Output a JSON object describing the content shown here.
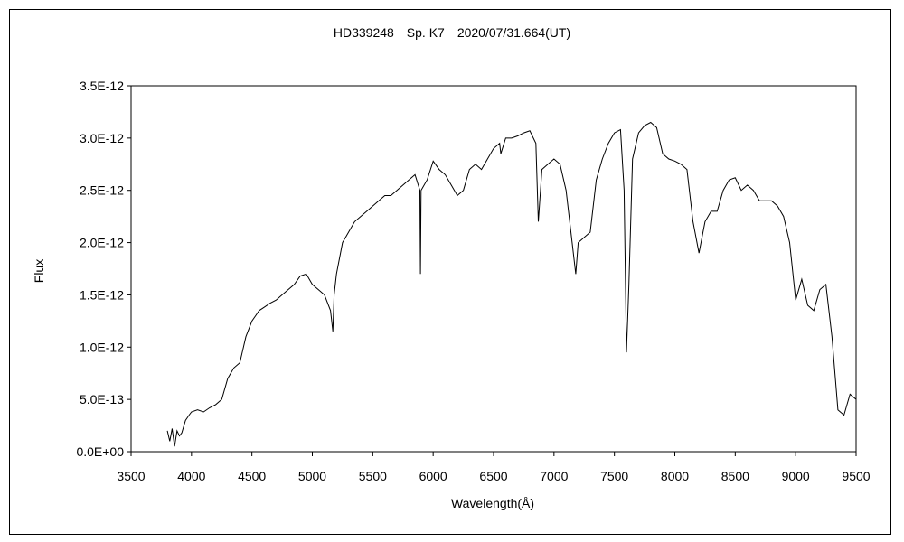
{
  "chart_data": {
    "type": "line",
    "title": "HD339248　Sp. K7　2020/07/31.664(UT)",
    "xlabel": "Wavelength(Å)",
    "ylabel": "Flux",
    "xlim": [
      3500,
      9500
    ],
    "ylim": [
      0,
      3.5e-12
    ],
    "x_ticks": [
      3500,
      4000,
      4500,
      5000,
      5500,
      6000,
      6500,
      7000,
      7500,
      8000,
      8500,
      9000,
      9500
    ],
    "x_tick_labels": [
      "3500",
      "4000",
      "4500",
      "5000",
      "5500",
      "6000",
      "6500",
      "7000",
      "7500",
      "8000",
      "8500",
      "9000",
      "9500"
    ],
    "y_ticks": [
      0,
      5e-13,
      1e-12,
      1.5e-12,
      2e-12,
      2.5e-12,
      3e-12,
      3.5e-12
    ],
    "y_tick_labels": [
      "0.0E+00",
      "5.0E-13",
      "1.0E-12",
      "1.5E-12",
      "2.0E-12",
      "2.5E-12",
      "3.0E-12",
      "3.5E-12"
    ],
    "grid": false,
    "legend": "none",
    "line_color": "#000000",
    "series": [
      {
        "x": [
          3800,
          3820,
          3840,
          3860,
          3880,
          3900,
          3920,
          3950,
          3980,
          4000,
          4050,
          4100,
          4150,
          4200,
          4250,
          4300,
          4350,
          4400,
          4450,
          4500,
          4530,
          4560,
          4600,
          4650,
          4700,
          4750,
          4800,
          4850,
          4900,
          4950,
          5000,
          5050,
          5100,
          5150,
          5170,
          5180,
          5200,
          5250,
          5300,
          5350,
          5400,
          5450,
          5500,
          5550,
          5600,
          5650,
          5700,
          5750,
          5800,
          5850,
          5890,
          5895,
          5900,
          5950,
          6000,
          6050,
          6100,
          6150,
          6200,
          6250,
          6300,
          6350,
          6400,
          6450,
          6500,
          6550,
          6560,
          6600,
          6650,
          6700,
          6750,
          6800,
          6850,
          6870,
          6900,
          6950,
          7000,
          7050,
          7100,
          7150,
          7180,
          7200,
          7250,
          7300,
          7350,
          7400,
          7450,
          7500,
          7550,
          7580,
          7600,
          7620,
          7650,
          7700,
          7750,
          7800,
          7850,
          7900,
          7950,
          8000,
          8050,
          8100,
          8150,
          8200,
          8250,
          8300,
          8350,
          8400,
          8450,
          8500,
          8550,
          8600,
          8650,
          8700,
          8750,
          8800,
          8850,
          8900,
          8950,
          9000,
          9050,
          9100,
          9150,
          9200,
          9250,
          9300,
          9350,
          9400,
          9450,
          9500
        ],
        "y": [
          2e-13,
          1e-13,
          2.2e-13,
          5e-14,
          2e-13,
          1.5e-13,
          1.8e-13,
          3e-13,
          3.5e-13,
          3.8e-13,
          4e-13,
          3.8e-13,
          4.2e-13,
          4.5e-13,
          5e-13,
          7e-13,
          8e-13,
          8.5e-13,
          1.1e-12,
          1.25e-12,
          1.3e-12,
          1.35e-12,
          1.38e-12,
          1.42e-12,
          1.45e-12,
          1.5e-12,
          1.55e-12,
          1.6e-12,
          1.68e-12,
          1.7e-12,
          1.6e-12,
          1.55e-12,
          1.5e-12,
          1.35e-12,
          1.15e-12,
          1.5e-12,
          1.7e-12,
          2e-12,
          2.1e-12,
          2.2e-12,
          2.25e-12,
          2.3e-12,
          2.35e-12,
          2.4e-12,
          2.45e-12,
          2.45e-12,
          2.5e-12,
          2.55e-12,
          2.6e-12,
          2.65e-12,
          2.5e-12,
          1.7e-12,
          2.5e-12,
          2.6e-12,
          2.78e-12,
          2.7e-12,
          2.65e-12,
          2.55e-12,
          2.45e-12,
          2.5e-12,
          2.7e-12,
          2.75e-12,
          2.7e-12,
          2.8e-12,
          2.9e-12,
          2.95e-12,
          2.85e-12,
          3e-12,
          3e-12,
          3.02e-12,
          3.05e-12,
          3.07e-12,
          2.95e-12,
          2.2e-12,
          2.7e-12,
          2.75e-12,
          2.8e-12,
          2.75e-12,
          2.5e-12,
          2e-12,
          1.7e-12,
          2e-12,
          2.05e-12,
          2.1e-12,
          2.6e-12,
          2.8e-12,
          2.95e-12,
          3.05e-12,
          3.08e-12,
          2.5e-12,
          9.5e-13,
          1.6e-12,
          2.8e-12,
          3.05e-12,
          3.12e-12,
          3.15e-12,
          3.1e-12,
          2.85e-12,
          2.8e-12,
          2.78e-12,
          2.75e-12,
          2.7e-12,
          2.2e-12,
          1.9e-12,
          2.2e-12,
          2.3e-12,
          2.3e-12,
          2.5e-12,
          2.6e-12,
          2.62e-12,
          2.5e-12,
          2.55e-12,
          2.5e-12,
          2.4e-12,
          2.4e-12,
          2.4e-12,
          2.35e-12,
          2.25e-12,
          2e-12,
          1.45e-12,
          1.65e-12,
          1.4e-12,
          1.35e-12,
          1.55e-12,
          1.6e-12,
          1.1e-12,
          4e-13,
          3.5e-13,
          5.5e-13,
          5e-13
        ]
      }
    ]
  }
}
